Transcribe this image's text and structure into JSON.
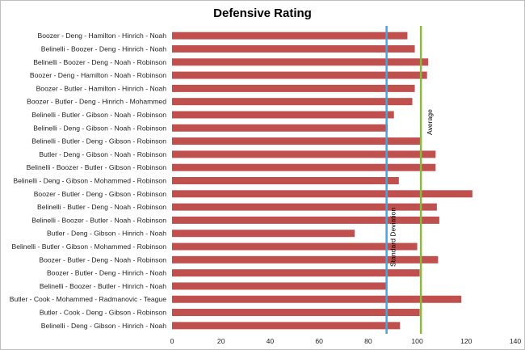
{
  "chart_data": {
    "type": "bar",
    "orientation": "horizontal",
    "title": "Defensive Rating",
    "xlabel": "",
    "ylabel": "",
    "xlim": [
      0,
      140
    ],
    "xticks": [
      0,
      20,
      40,
      60,
      80,
      100,
      120,
      140
    ],
    "grid": false,
    "bar_color": "#c0504d",
    "categories": [
      "Boozer - Deng - Hamilton - Hinrich - Noah",
      "Belinelli - Boozer - Deng - Hinrich - Noah",
      "Belinelli - Boozer - Deng - Noah - Robinson",
      "Boozer - Deng - Hamilton - Noah - Robinson",
      "Boozer - Butler - Hamilton - Hinrich - Noah",
      "Boozer - Butler - Deng - Hinrich - Mohammed",
      "Belinelli - Butler - Gibson - Noah - Robinson",
      "Belinelli - Deng - Gibson - Noah - Robinson",
      "Belinelli - Butler - Deng - Gibson - Robinson",
      "Butler - Deng - Gibson - Noah - Robinson",
      "Belinelli - Boozer - Butler - Gibson - Robinson",
      "Belinelli - Deng - Gibson - Mohammed - Robinson",
      "Boozer - Butler - Deng - Gibson - Robinson",
      "Belinelli - Butler - Deng - Noah - Robinson",
      "Belinelli - Boozer - Butler - Noah - Robinson",
      "Butler - Deng - Gibson - Hinrich - Noah",
      "Belinelli - Butler - Gibson - Mohammed - Robinson",
      "Boozer - Butler - Deng - Noah - Robinson",
      "Boozer - Butler - Deng - Hinrich - Noah",
      "Belinelli - Boozer - Butler - Hinrich - Noah",
      "Butler - Cook - Mohammed - Radmanovic - Teague",
      "Butler - Cook - Deng - Gibson - Robinson",
      "Belinelli - Deng - Gibson - Hinrich - Noah"
    ],
    "values": [
      96,
      99,
      104.5,
      104,
      99,
      98,
      90.5,
      88,
      101.5,
      107.5,
      107.5,
      92.5,
      122.5,
      108,
      109,
      74.5,
      100,
      108.5,
      101,
      87.5,
      118,
      101,
      93
    ],
    "reference_lines": [
      {
        "name": "Standard Deviation",
        "value": 87.5,
        "color": "#4aa3df"
      },
      {
        "name": "Average",
        "value": 101.5,
        "color": "#8db645"
      }
    ]
  }
}
